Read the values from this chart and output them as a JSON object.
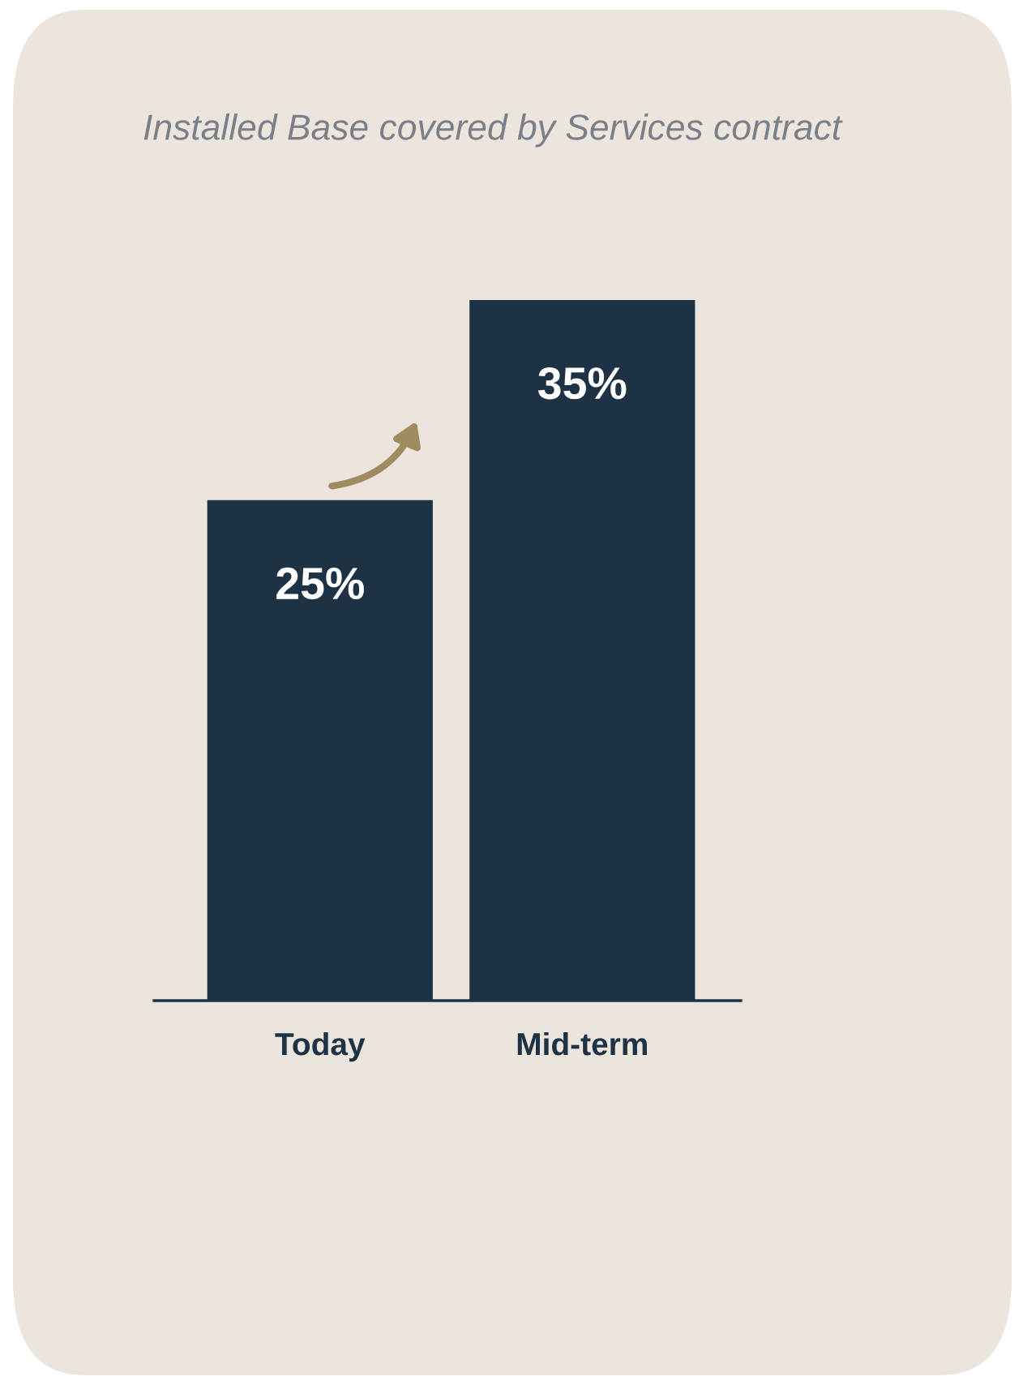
{
  "chart_data": {
    "type": "bar",
    "title": "Installed Base covered by Services contract",
    "categories": [
      "Today",
      "Mid-term"
    ],
    "values": [
      25,
      35
    ],
    "value_labels": [
      "25%",
      "35%"
    ],
    "color": "#1e3246",
    "tick_labels": "x",
    "grid": false,
    "legend": false
  }
}
